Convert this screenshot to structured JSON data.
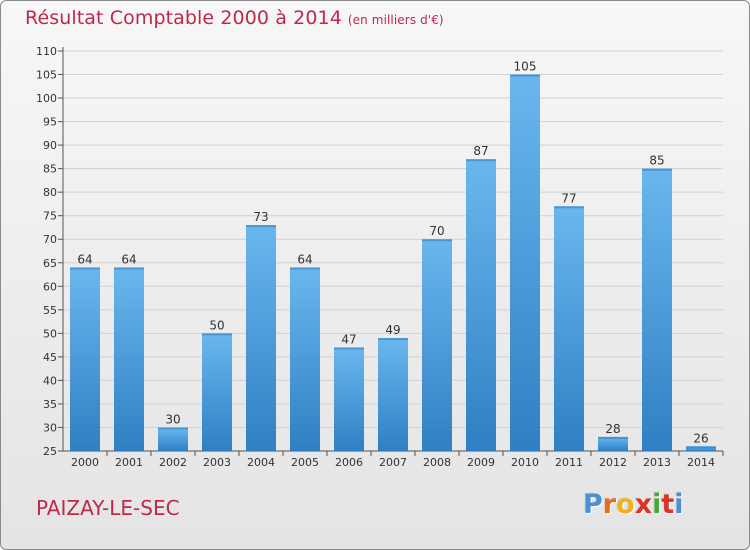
{
  "header": {
    "title": "Résultat Comptable 2000 à 2014",
    "subtitle": "(en milliers d'€)"
  },
  "commune": "PAIZAY-LE-SEC",
  "logo": {
    "letters": [
      "P",
      "r",
      "o",
      "x",
      "i",
      "t",
      "i"
    ],
    "colors": [
      "#4e8fd3",
      "#e86a1c",
      "#f2b01c",
      "#d9332a",
      "#4aa83b",
      "#d9332a",
      "#4e8fd3"
    ]
  },
  "colors": {
    "bar": "#4a9fdf",
    "bar_light": "#6ab7ee",
    "bar_dark": "#2f7fc4",
    "title": "#c0284a"
  },
  "chart_data": {
    "type": "bar",
    "categories": [
      "2000",
      "2001",
      "2002",
      "2003",
      "2004",
      "2005",
      "2006",
      "2007",
      "2008",
      "2009",
      "2010",
      "2011",
      "2012",
      "2013",
      "2014"
    ],
    "values": [
      64,
      64,
      30,
      50,
      73,
      64,
      47,
      49,
      70,
      87,
      105,
      77,
      28,
      85,
      26
    ],
    "ylim": [
      25,
      110
    ],
    "yticks": [
      25,
      30,
      35,
      40,
      45,
      50,
      55,
      60,
      65,
      70,
      75,
      80,
      85,
      90,
      95,
      100,
      105,
      110
    ],
    "grid": "horizontal",
    "data_labels": true
  }
}
